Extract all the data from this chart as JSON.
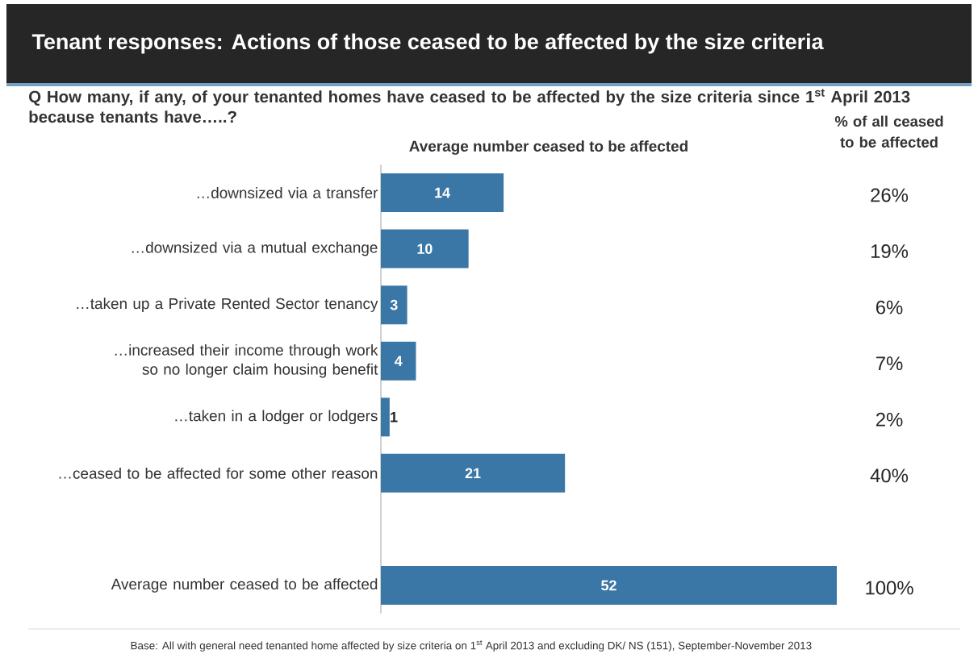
{
  "chart_data": {
    "type": "bar",
    "orientation": "horizontal",
    "title": "Tenant responses: Actions of those ceased to be affected by the size criteria",
    "subtitle": "Q  How many, if any, of your tenanted homes have ceased to be affected by the size criteria since 1$^{st}$ April 2013 because tenants have…..?",
    "xlabel": "Average number ceased to be affected",
    "categories": [
      "…downsized via a transfer",
      "…downsized via a mutual exchange",
      "…taken up a Private Rented Sector tenancy",
      "…increased their income through work so no longer claim housing benefit",
      "…taken in a lodger or lodgers",
      "…ceased to be affected for some other reason",
      null,
      "Average number ceased to be affected"
    ],
    "values": [
      14,
      10,
      3,
      4,
      1,
      21,
      null,
      52
    ],
    "color": "#3b77a6",
    "xlim": [
      0,
      52
    ],
    "data_labels": true,
    "annotations": [
      "% of all ceased to be affected",
      "26%",
      "19%",
      "6%",
      "7%",
      "2%",
      "40%",
      "100%",
      "Base: All with general need tenanted home affected by size criteria on 1$^{st}$ April 2013 and excluding DK/ NS (151), September-November 2013"
    ]
  }
}
